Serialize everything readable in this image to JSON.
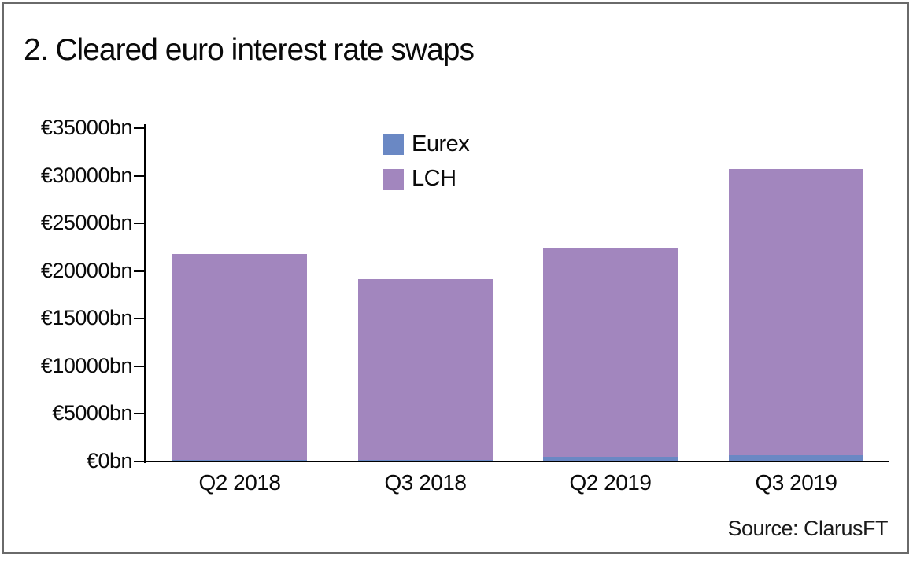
{
  "title": "2. Cleared euro interest rate swaps",
  "source_label": "Source: ClarusFT",
  "colors": {
    "eurex": "#6A88C4",
    "lch": "#A286BE",
    "axis": "#000000",
    "frame_border": "#6A6A6A",
    "background": "#FFFFFF"
  },
  "legend": {
    "position": "top-center-inside",
    "items": [
      {
        "label": "Eurex",
        "color": "#6A88C4"
      },
      {
        "label": "LCH",
        "color": "#A286BE"
      }
    ]
  },
  "chart_data": {
    "type": "bar",
    "stacked": true,
    "title": "2. Cleared euro interest rate swaps",
    "categories": [
      "Q2 2018",
      "Q3 2018",
      "Q2 2019",
      "Q3 2019"
    ],
    "series": [
      {
        "name": "Eurex",
        "color": "#6A88C4",
        "values": [
          200,
          150,
          500,
          650
        ]
      },
      {
        "name": "LCH",
        "color": "#A286BE",
        "values": [
          21600,
          19000,
          21900,
          30050
        ]
      }
    ],
    "totals": [
      21800,
      19150,
      22400,
      30700
    ],
    "unit": "€bn",
    "xlabel": "",
    "ylabel": "",
    "ylim": [
      0,
      35000
    ],
    "ytick_step": 5000,
    "ytick_labels": [
      "€0bn",
      "€5000bn",
      "€10000bn",
      "€15000bn",
      "€20000bn",
      "€25000bn",
      "€30000bn",
      "€35000bn"
    ],
    "grid": false,
    "legend_entries": [
      "Eurex",
      "LCH"
    ]
  }
}
